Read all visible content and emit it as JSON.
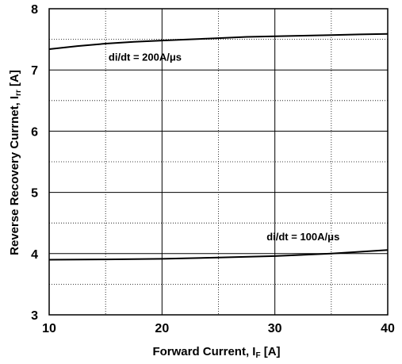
{
  "chart_data": {
    "type": "line",
    "title": "",
    "xlabel": {
      "main": "Forward Current, I",
      "sub": "F",
      "unit": " [A]"
    },
    "ylabel": {
      "main": "Reverse Recovery Currnet, I",
      "sub": "rr",
      "unit": " [A]"
    },
    "xlim": [
      10,
      40
    ],
    "ylim": [
      3,
      8
    ],
    "x_major_ticks": [
      10,
      20,
      30,
      40
    ],
    "y_major_ticks": [
      3,
      4,
      5,
      6,
      7,
      8
    ],
    "x_minor_step": 5,
    "y_minor_step": 0.5,
    "grid": true,
    "series": [
      {
        "name": "di/dt = 200A/μs",
        "x": [
          10,
          12.5,
          15,
          17.5,
          20,
          22.5,
          25,
          27.5,
          30,
          32.5,
          35,
          37.5,
          40
        ],
        "y": [
          7.34,
          7.39,
          7.43,
          7.46,
          7.48,
          7.5,
          7.52,
          7.54,
          7.55,
          7.56,
          7.57,
          7.58,
          7.59
        ]
      },
      {
        "name": "di/dt = 100A/μs",
        "x": [
          10,
          15,
          20,
          25,
          30,
          35,
          40
        ],
        "y": [
          3.9,
          3.905,
          3.915,
          3.935,
          3.96,
          4.0,
          4.06
        ]
      }
    ],
    "annotations": [
      {
        "text": "di/dt = 200A/μs",
        "x": 18.5,
        "y": 7.15,
        "anchor": "middle"
      },
      {
        "text": "di/dt = 100A/μs",
        "x": 32.5,
        "y": 4.22,
        "anchor": "middle"
      }
    ]
  }
}
